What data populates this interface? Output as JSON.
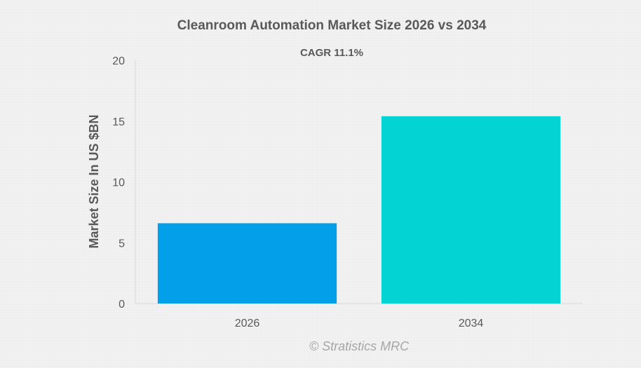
{
  "chart_data": {
    "type": "bar",
    "title": "Cleanroom Automation Market Size 2026 vs 2034",
    "subtitle": "CAGR 11.1%",
    "categories": [
      "2026",
      "2034"
    ],
    "values": [
      6.6,
      15.4
    ],
    "colors": [
      "#039fe9",
      "#03d3d3"
    ],
    "xlabel": "",
    "ylabel": "Market Size In US $BN",
    "ylim": [
      0,
      20
    ],
    "yticks": [
      "0",
      "5",
      "10",
      "15",
      "20"
    ],
    "grid": false,
    "legend": "none"
  },
  "source": "© Stratistics MRC"
}
